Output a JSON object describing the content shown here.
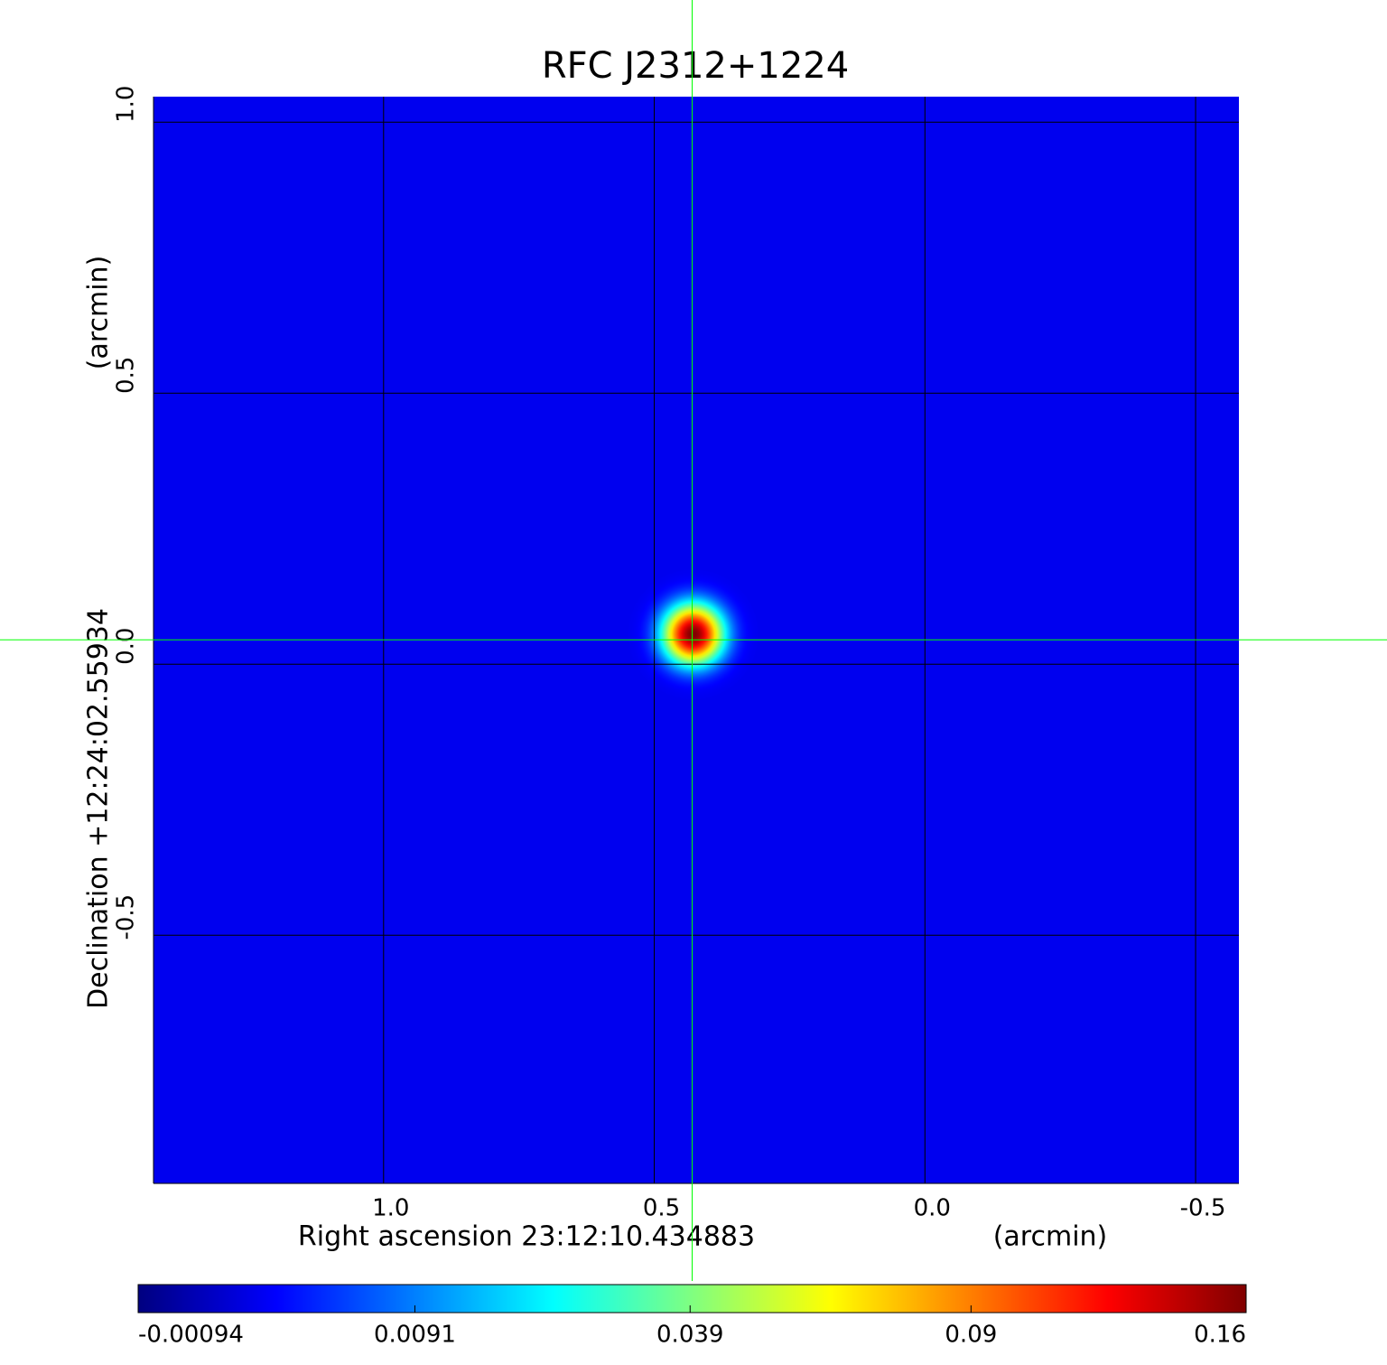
{
  "chart_data": {
    "type": "heatmap",
    "title": "RFC J2312+1224",
    "title_color": "#1414c8",
    "x_label": "Right ascension  23:12:10.434883",
    "x_unit": "(arcmin)",
    "y_label": "Declination  +12:24:02.55934",
    "y_unit": "(arcmin)",
    "xlim": [
      1.425,
      -0.58
    ],
    "ylim": [
      -0.958,
      1.047
    ],
    "xticks": [
      {
        "value": 1,
        "label": "1.0"
      },
      0.5,
      {
        "value": 0,
        "label": "0.0"
      },
      -0.5
    ],
    "yticks": [
      {
        "value": 1,
        "label": "1.0"
      },
      0.5,
      {
        "value": 0,
        "label": "0.0"
      },
      -0.5
    ],
    "grid": true,
    "grid_color": "#000000",
    "colormap": "jet",
    "color_scale": "sqrt",
    "clim": [
      -0.00094,
      0.16
    ],
    "cticks": [
      -0.00094,
      0.0091,
      0.039,
      0.09,
      0.16
    ],
    "background": 0.001,
    "sources": [
      {
        "x": 0.428,
        "y": 0.055,
        "peak": 0.16,
        "sigma": 0.03
      }
    ],
    "crosshair": {
      "x": 0.43,
      "y": 0.045,
      "color": "#00ff00"
    }
  }
}
